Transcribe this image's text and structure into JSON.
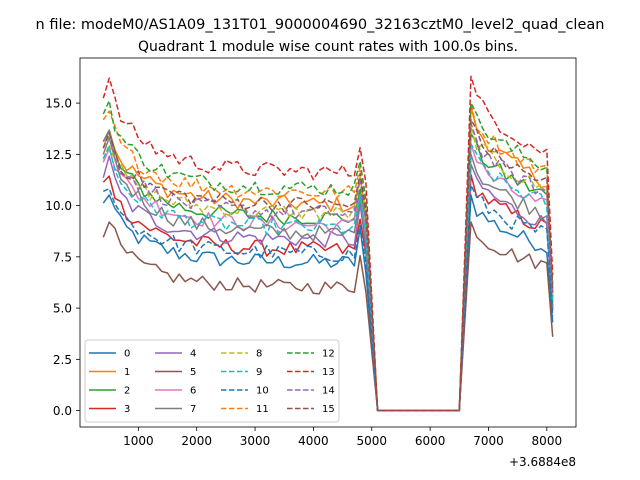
{
  "chart_data": {
    "type": "line",
    "suptitle": "n file: modeM0/AS1A09_131T01_9000004690_32163cztM0_level2_quad_clean",
    "title": "Quadrant 1 module wise count rates with 100.0s bins.",
    "xlabel": "",
    "ylabel": "",
    "x_offset_label": "+3.6884e8",
    "xlim": [
      0,
      8500
    ],
    "ylim": [
      -0.8,
      17.2
    ],
    "xticks": [
      1000,
      2000,
      3000,
      4000,
      5000,
      6000,
      7000,
      8000
    ],
    "xtick_labels": [
      "1000",
      "2000",
      "3000",
      "4000",
      "5000",
      "6000",
      "7000",
      "8000"
    ],
    "yticks": [
      0.0,
      2.5,
      5.0,
      7.5,
      10.0,
      12.5,
      15.0
    ],
    "ytick_labels": [
      "0.0",
      "2.5",
      "5.0",
      "7.5",
      "10.0",
      "12.5",
      "15.0"
    ],
    "grid": false,
    "legend_location": "lower-left",
    "legend_ncol": 4,
    "segments": [
      {
        "x_start": 400,
        "x_end": 4900
      },
      {
        "x_start": 6700,
        "x_end": 8100
      }
    ],
    "gap": {
      "x": [
        5100,
        6500
      ],
      "value": 0
    },
    "series": [
      {
        "name": "0",
        "color": "#1f77b4",
        "style": "solid",
        "start": 10.0,
        "base": 7.3,
        "end": 7.2,
        "bump": 0.1,
        "noise": 0.4,
        "peak2": 10.5,
        "end2": 7.9,
        "final": 4.3
      },
      {
        "name": "1",
        "color": "#ff7f0e",
        "style": "solid",
        "start": 13.2,
        "base": 10.3,
        "end": 10.0,
        "bump": 0.1,
        "noise": 0.4,
        "peak2": 14.8,
        "end2": 11.0,
        "final": 5.8
      },
      {
        "name": "2",
        "color": "#2ca02c",
        "style": "solid",
        "start": 13.0,
        "base": 9.5,
        "end": 9.4,
        "bump": 0.1,
        "noise": 0.4,
        "peak2": 13.5,
        "end2": 10.4,
        "final": 5.5
      },
      {
        "name": "3",
        "color": "#d62728",
        "style": "solid",
        "start": 11.0,
        "base": 8.0,
        "end": 7.8,
        "bump": 0.1,
        "noise": 0.4,
        "peak2": 11.5,
        "end2": 8.8,
        "final": 4.9
      },
      {
        "name": "4",
        "color": "#9467bd",
        "style": "solid",
        "start": 11.5,
        "base": 8.5,
        "end": 8.3,
        "bump": 0.1,
        "noise": 0.4,
        "peak2": 12.0,
        "end2": 9.0,
        "final": 5.0
      },
      {
        "name": "5",
        "color": "#8c564b",
        "style": "solid",
        "start": 8.8,
        "base": 6.1,
        "end": 6.0,
        "bump": 0.1,
        "noise": 0.35,
        "peak2": 9.2,
        "end2": 7.0,
        "final": 3.6
      },
      {
        "name": "6",
        "color": "#e377c2",
        "style": "solid",
        "start": 12.5,
        "base": 9.2,
        "end": 9.0,
        "bump": 0.1,
        "noise": 0.4,
        "peak2": 13.0,
        "end2": 9.8,
        "final": 5.3
      },
      {
        "name": "7",
        "color": "#7f7f7f",
        "style": "solid",
        "start": 12.8,
        "base": 8.8,
        "end": 8.6,
        "bump": 0.1,
        "noise": 0.4,
        "peak2": 12.5,
        "end2": 9.5,
        "final": 5.1
      },
      {
        "name": "8",
        "color": "#bcbd22",
        "style": "dashed",
        "start": 12.6,
        "base": 9.8,
        "end": 9.6,
        "bump": 0.1,
        "noise": 0.4,
        "peak2": 14.0,
        "end2": 10.6,
        "final": 5.6
      },
      {
        "name": "9",
        "color": "#17becf",
        "style": "dashed",
        "start": 12.2,
        "base": 9.0,
        "end": 8.9,
        "bump": 0.1,
        "noise": 0.4,
        "peak2": 13.0,
        "end2": 10.0,
        "final": 5.3
      },
      {
        "name": "10",
        "color": "#1f77b4",
        "style": "dashed",
        "start": 10.5,
        "base": 7.8,
        "end": 7.6,
        "bump": 0.1,
        "noise": 0.4,
        "peak2": 11.0,
        "end2": 8.5,
        "final": 4.6
      },
      {
        "name": "11",
        "color": "#ff7f0e",
        "style": "dashed",
        "start": 14.0,
        "base": 10.8,
        "end": 10.6,
        "bump": 0.1,
        "noise": 0.4,
        "peak2": 15.0,
        "end2": 11.5,
        "final": 6.0
      },
      {
        "name": "12",
        "color": "#2ca02c",
        "style": "dashed",
        "start": 14.5,
        "base": 11.0,
        "end": 10.8,
        "bump": 0.1,
        "noise": 0.4,
        "peak2": 15.0,
        "end2": 11.8,
        "final": 6.2
      },
      {
        "name": "13",
        "color": "#d62728",
        "style": "dashed",
        "start": 15.6,
        "base": 11.8,
        "end": 11.6,
        "bump": 0.1,
        "noise": 0.4,
        "peak2": 16.3,
        "end2": 12.4,
        "final": 6.6
      },
      {
        "name": "14",
        "color": "#9467bd",
        "style": "dashed",
        "start": 13.0,
        "base": 9.8,
        "end": 9.6,
        "bump": 0.1,
        "noise": 0.4,
        "peak2": 14.0,
        "end2": 10.5,
        "final": 5.6
      },
      {
        "name": "15",
        "color": "#8c564b",
        "style": "dashed",
        "start": 12.9,
        "base": 10.2,
        "end": 10.0,
        "bump": 0.1,
        "noise": 0.4,
        "peak2": 14.2,
        "end2": 11.0,
        "final": 5.8
      }
    ]
  }
}
